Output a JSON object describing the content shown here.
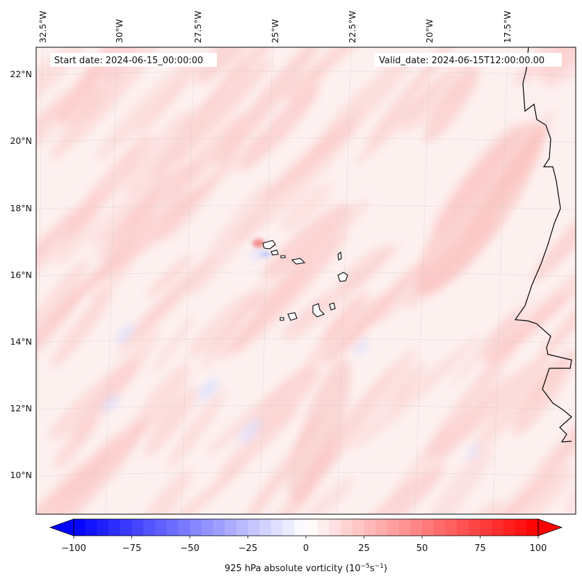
{
  "map": {
    "start_date_text": "Start date: 2024-06-15_00:00:00",
    "valid_date_text": "Valid_date: 2024-06-15T12:00:00.00",
    "lon_labels": [
      "32.5°W",
      "30°W",
      "27.5°W",
      "25°W",
      "22.5°W",
      "20°W",
      "17.5°W"
    ],
    "lat_labels": [
      "22°N",
      "20°N",
      "18°N",
      "16°N",
      "14°N",
      "12°N",
      "10°N"
    ],
    "field": "925 hPa absolute vorticity",
    "colormap": "bwr",
    "colors": {
      "negative": "#0000ff",
      "zero": "#ffffff",
      "positive": "#ff0000",
      "coast": "#000000",
      "grid": "#bbbbbb"
    }
  },
  "colorbar": {
    "label_main": "925 hPa absolute vorticity (10",
    "label_exp1": "−5",
    "label_mid": "s",
    "label_exp2": "−1",
    "label_end": ")",
    "ticks": [
      "−100",
      "−75",
      "−50",
      "−25",
      "0",
      "25",
      "50",
      "75",
      "100"
    ],
    "tick_values": [
      -100,
      -75,
      -50,
      -25,
      0,
      25,
      50,
      75,
      100
    ],
    "range": [
      -100,
      100
    ],
    "levels": 40,
    "extend": "both"
  }
}
